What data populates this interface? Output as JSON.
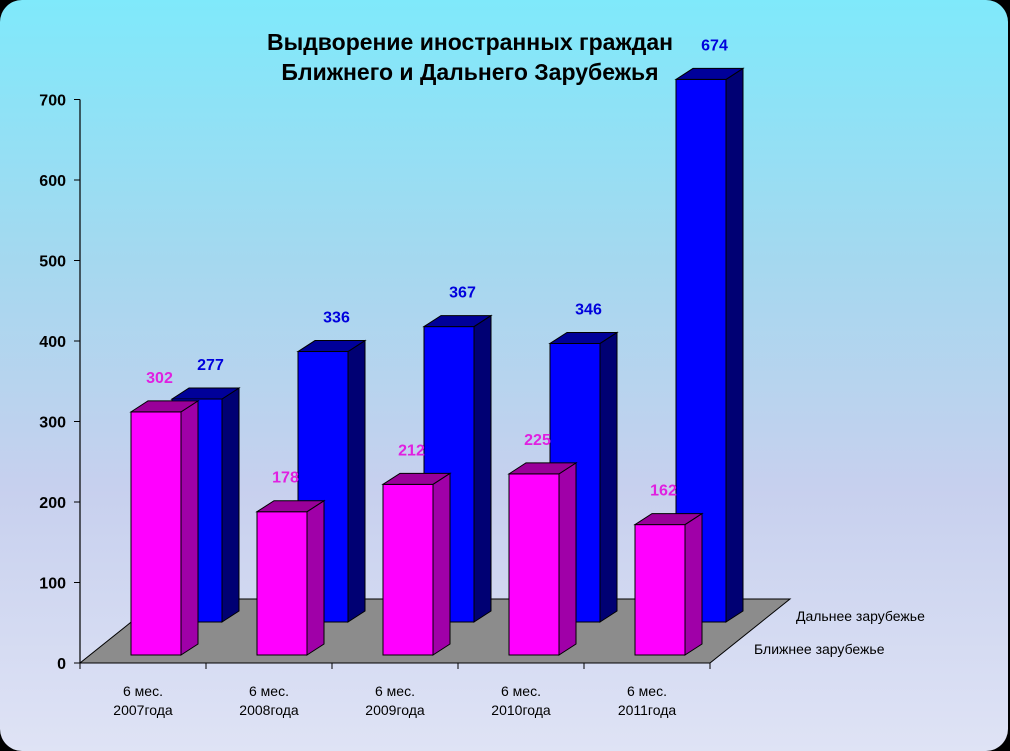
{
  "chart_data": {
    "type": "bar",
    "title": [
      "Выдворение иностранных граждан",
      "Ближнего и Дальнего Зарубежья"
    ],
    "categories": [
      [
        "6 мес.",
        "2007года"
      ],
      [
        "6 мес.",
        "2008года"
      ],
      [
        "6 мес.",
        "2009года"
      ],
      [
        "6 мес.",
        "2010года"
      ],
      [
        "6 мес.",
        "2011года"
      ]
    ],
    "series": [
      {
        "name": "Ближнее зарубежье",
        "values": [
          302,
          178,
          212,
          225,
          162
        ],
        "color": "#ff00ff",
        "label_color": "#e020e0"
      },
      {
        "name": "Дальнее зарубежье",
        "values": [
          277,
          336,
          367,
          346,
          674
        ],
        "color": "#0000ff",
        "label_color": "#0000dd"
      }
    ],
    "yticks": [
      0,
      100,
      200,
      300,
      400,
      500,
      600,
      700
    ],
    "ylim": [
      0,
      700
    ],
    "floor_color": "#8c8c8c",
    "grid": false,
    "style": "3d-column"
  }
}
